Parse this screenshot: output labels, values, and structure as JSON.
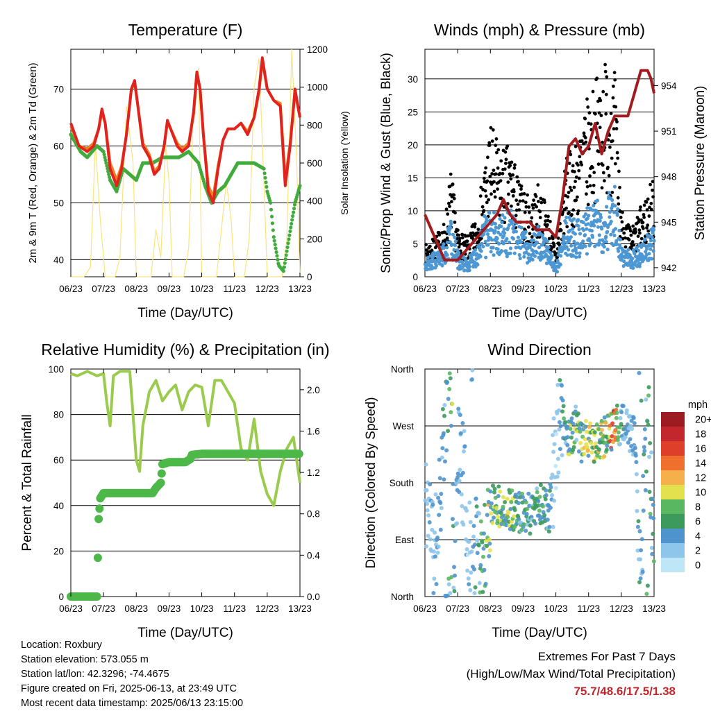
{
  "x_ticks": [
    "06/23",
    "07/23",
    "08/23",
    "09/23",
    "10/23",
    "11/23",
    "12/23",
    "13/23"
  ],
  "x_label": "Time (Day/UTC)",
  "colors": {
    "temp2m": "#e0231f",
    "temp9m": "#f08023",
    "dewpoint": "#42ab3e",
    "solar": "#fbe47a",
    "sonic": "#4d97d3",
    "gust": "#000000",
    "pressure": "#a21b1f",
    "rh": "#9bcb4d",
    "precip": "#4db849",
    "extremes": "#c0272d"
  },
  "panels": {
    "temperature": {
      "title": "Temperature (F)",
      "ylabel_left": "2m & 9m T (Red, Orange) & 2m Td (Green)",
      "ylabel_right": "Solar Insolation (Yellow)",
      "left_ticks": [
        "40",
        "50",
        "60",
        "70"
      ],
      "right_ticks": [
        "0",
        "200",
        "400",
        "600",
        "800",
        "1000",
        "1200"
      ]
    },
    "winds": {
      "title": "Winds (mph) & Pressure (mb)",
      "ylabel_left": "Sonic/Prop Wind & Gust (Blue, Black)",
      "ylabel_right": "Station Pressure (Maroon)",
      "left_ticks": [
        "0",
        "5",
        "10",
        "15",
        "20",
        "25",
        "30"
      ],
      "right_ticks": [
        "942",
        "945",
        "948",
        "951",
        "954"
      ]
    },
    "humidity": {
      "title": "Relative Humidity (%) & Precipitation (in)",
      "ylabel_left": "Percent & Total Rainfall",
      "left_ticks": [
        "0",
        "20",
        "40",
        "60",
        "80",
        "100"
      ],
      "right_ticks": [
        "0.0",
        "0.4",
        "0.8",
        "1.2",
        "1.6",
        "2.0"
      ]
    },
    "direction": {
      "title": "Wind Direction",
      "ylabel_left": "Direction (Colored By Speed)",
      "left_ticks": [
        "North",
        "East",
        "South",
        "West",
        "North"
      ],
      "legend_title": "mph",
      "legend_labels": [
        "0",
        "2",
        "4",
        "6",
        "8",
        "10",
        "12",
        "14",
        "16",
        "18",
        "20+"
      ],
      "legend_colors": [
        "#bfe6f7",
        "#8ec5ea",
        "#4f93cc",
        "#3b9a5c",
        "#59b761",
        "#e4e14e",
        "#f5b04b",
        "#ef6f2c",
        "#dd3f2b",
        "#c1272d",
        "#9c1c22"
      ]
    }
  },
  "chart_data": [
    {
      "type": "line",
      "title": "Temperature (F)",
      "xlabel": "Time (Day/UTC)",
      "ylabel": "2m & 9m T (Red, Orange) & 2m Td (Green)",
      "y2label": "Solar Insolation (Yellow)",
      "ylim": [
        37,
        77
      ],
      "y2lim": [
        0,
        1200
      ],
      "xlim": [
        0,
        7
      ],
      "series": [
        {
          "name": "2m T",
          "axis": "left",
          "x": [
            0,
            0.25,
            0.5,
            0.7,
            0.85,
            0.95,
            1.05,
            1.2,
            1.4,
            1.55,
            1.7,
            1.85,
            1.95,
            2.05,
            2.2,
            2.4,
            2.55,
            2.7,
            2.85,
            2.95,
            3.05,
            3.25,
            3.4,
            3.6,
            3.75,
            3.85,
            3.95,
            4.05,
            4.2,
            4.35,
            4.5,
            4.65,
            4.8,
            5.0,
            5.2,
            5.4,
            5.6,
            5.75,
            5.85,
            6.0,
            6.2,
            6.4,
            6.55,
            6.7,
            6.85,
            7.0
          ],
          "y": [
            64,
            60,
            59,
            60,
            63,
            66.5,
            64,
            56,
            53,
            56,
            62,
            70,
            71.5,
            67,
            60,
            58,
            55,
            56,
            60,
            64.5,
            63,
            60,
            59,
            60,
            66,
            73,
            70,
            62,
            52,
            50,
            56,
            61,
            63,
            63,
            64,
            62,
            65,
            70,
            75.5,
            70,
            68,
            67,
            53,
            60,
            70,
            65
          ]
        },
        {
          "name": "9m T",
          "axis": "left",
          "x": [
            0,
            0.25,
            0.5,
            0.7,
            0.85,
            0.95,
            1.05,
            1.2,
            1.4,
            1.55,
            1.7,
            1.85,
            1.95,
            2.05,
            2.2,
            2.4,
            2.55,
            2.7,
            2.85,
            2.95,
            3.05,
            3.25,
            3.4,
            3.6,
            3.75,
            3.85,
            3.95,
            4.05,
            4.2,
            4.35,
            4.5,
            4.65,
            4.8,
            5.0,
            5.2,
            5.4,
            5.6,
            5.75,
            5.85,
            6.0,
            6.2,
            6.4,
            6.55,
            6.7,
            6.85,
            7.0
          ],
          "y": [
            63.5,
            60,
            59.5,
            60.5,
            63,
            66,
            64,
            57,
            54,
            56.5,
            62,
            70,
            71,
            67,
            60.5,
            58.5,
            55.5,
            56.5,
            60,
            64,
            63,
            60.5,
            59.5,
            60.5,
            65.5,
            72.5,
            70,
            62,
            53,
            51,
            56.5,
            61,
            63,
            63,
            64,
            62.5,
            65,
            69.5,
            75,
            70,
            68,
            67.5,
            54,
            60.5,
            69.5,
            65
          ]
        },
        {
          "name": "2m Td",
          "axis": "left",
          "x": [
            0,
            0.3,
            0.5,
            0.8,
            1.0,
            1.2,
            1.4,
            1.6,
            1.8,
            2.0,
            2.2,
            2.5,
            2.8,
            3.0,
            3.3,
            3.6,
            3.9,
            4.1,
            4.3,
            4.5,
            4.7,
            4.9,
            5.1,
            5.3,
            5.6,
            5.9,
            6.0,
            6.1,
            6.2,
            6.35,
            6.5,
            6.7,
            6.85,
            7.0
          ],
          "y": [
            62,
            59,
            58,
            60,
            59,
            54,
            52,
            56,
            55,
            54,
            57,
            57,
            58,
            58,
            58,
            59,
            57,
            53,
            50,
            52,
            53,
            55,
            57,
            57,
            57,
            56,
            52,
            50,
            44,
            39,
            38,
            45,
            50,
            53
          ]
        },
        {
          "name": "Solar Insolation",
          "axis": "right",
          "x": [
            0,
            0.2,
            0.4,
            0.6,
            0.75,
            0.9,
            1.05,
            1.2,
            1.35,
            1.5,
            1.7,
            1.9,
            2.0,
            2.1,
            2.3,
            2.45,
            2.6,
            2.75,
            2.9,
            3.0,
            3.1,
            3.3,
            3.45,
            3.6,
            3.75,
            3.9,
            4.0,
            4.1,
            4.3,
            4.45,
            4.6,
            4.75,
            4.9,
            5.0,
            5.1,
            5.3,
            5.45,
            5.6,
            5.75,
            5.9,
            6.0,
            6.1,
            6.3,
            6.45,
            6.6,
            6.75,
            6.9,
            7.0
          ],
          "y": [
            0,
            0,
            0,
            50,
            700,
            300,
            0,
            0,
            0,
            100,
            900,
            600,
            0,
            0,
            0,
            0,
            250,
            100,
            700,
            500,
            0,
            0,
            0,
            150,
            900,
            1100,
            0,
            0,
            0,
            0,
            250,
            500,
            300,
            0,
            0,
            0,
            200,
            1000,
            1150,
            500,
            0,
            0,
            0,
            0,
            200,
            1200,
            600,
            0
          ]
        }
      ]
    },
    {
      "type": "line",
      "title": "Winds (mph) & Pressure (mb)",
      "xlabel": "Time (Day/UTC)",
      "ylabel": "Sonic/Prop Wind & Gust (Blue, Black)",
      "y2label": "Station Pressure (Maroon)",
      "ylim": [
        0,
        34.5
      ],
      "y2lim": [
        941.4,
        956.4
      ],
      "xlim": [
        0,
        7
      ],
      "series": [
        {
          "name": "Sonic/Prop Wind",
          "axis": "left",
          "x": [
            0,
            0.3,
            0.6,
            0.8,
            1.0,
            1.3,
            1.6,
            1.8,
            2.0,
            2.3,
            2.6,
            2.9,
            3.2,
            3.5,
            3.8,
            4.0,
            4.3,
            4.6,
            4.9,
            5.2,
            5.5,
            5.8,
            6.0,
            6.3,
            6.6,
            7.0
          ],
          "y": [
            2,
            3,
            4,
            7,
            3,
            2,
            4,
            7,
            8,
            7,
            8,
            6,
            5,
            6,
            4,
            1,
            7,
            7,
            8,
            9,
            9,
            12,
            4,
            3,
            4,
            6
          ]
        },
        {
          "name": "Gust",
          "axis": "left",
          "x": [
            0,
            0.3,
            0.6,
            0.8,
            1.0,
            1.3,
            1.6,
            1.8,
            2.0,
            2.3,
            2.6,
            2.9,
            3.2,
            3.5,
            3.8,
            4.0,
            4.3,
            4.6,
            4.9,
            5.2,
            5.5,
            5.8,
            6.0,
            6.3,
            6.6,
            7.0
          ],
          "y": [
            4,
            5,
            7,
            14,
            6,
            5,
            8,
            14,
            20,
            16,
            17,
            12,
            10,
            12,
            8,
            3,
            15,
            17,
            22,
            25,
            28,
            26,
            9,
            6,
            9,
            13
          ]
        },
        {
          "name": "Station Pressure",
          "axis": "right",
          "x": [
            0,
            0.2,
            0.4,
            0.6,
            0.8,
            1.0,
            1.2,
            1.4,
            1.6,
            1.8,
            2.0,
            2.2,
            2.4,
            2.6,
            2.8,
            3.0,
            3.2,
            3.4,
            3.6,
            3.8,
            4.0,
            4.2,
            4.4,
            4.6,
            4.8,
            5.0,
            5.2,
            5.4,
            5.6,
            5.8,
            6.0,
            6.2,
            6.4,
            6.6,
            6.8,
            6.9,
            7.0
          ],
          "y": [
            945.5,
            944.5,
            943.5,
            942.5,
            942.5,
            942.5,
            943,
            943.5,
            944,
            944.5,
            945,
            945.5,
            946.5,
            945.5,
            945,
            945,
            945,
            944.5,
            944.5,
            944.5,
            944,
            946.5,
            950,
            950.5,
            949.5,
            950,
            951.5,
            949.5,
            951,
            952,
            952,
            952,
            953.5,
            955,
            955,
            954.5,
            953.5
          ]
        }
      ]
    },
    {
      "type": "line",
      "title": "Relative Humidity (%) & Precipitation (in)",
      "xlabel": "Time (Day/UTC)",
      "ylabel": "Percent & Total Rainfall",
      "ylim": [
        0,
        100
      ],
      "y2lim": [
        0,
        2.2
      ],
      "xlim": [
        0,
        7
      ],
      "series": [
        {
          "name": "Relative Humidity",
          "axis": "left",
          "x": [
            0,
            0.2,
            0.5,
            0.8,
            1.0,
            1.1,
            1.2,
            1.3,
            1.5,
            1.8,
            1.9,
            2.0,
            2.1,
            2.2,
            2.4,
            2.6,
            2.8,
            3.0,
            3.2,
            3.4,
            3.6,
            3.8,
            4.0,
            4.2,
            4.4,
            4.6,
            4.8,
            5.0,
            5.2,
            5.4,
            5.6,
            5.8,
            6.0,
            6.2,
            6.4,
            6.6,
            6.8,
            7.0
          ],
          "y": [
            98,
            97,
            99,
            97,
            98,
            85,
            75,
            97,
            99,
            99,
            80,
            60,
            55,
            75,
            90,
            95,
            86,
            90,
            93,
            82,
            90,
            93,
            92,
            75,
            95,
            95,
            90,
            85,
            65,
            60,
            78,
            55,
            45,
            40,
            55,
            65,
            70,
            50
          ]
        },
        {
          "name": "Total Precipitation",
          "axis": "right",
          "x": [
            0,
            0.8,
            0.82,
            0.85,
            0.9,
            1.0,
            1.5,
            2.5,
            2.6,
            2.75,
            2.8,
            3.0,
            3.5,
            3.65,
            3.7,
            4.0,
            5.0,
            6.0,
            7.0
          ],
          "y": [
            0,
            0,
            0.3,
            0.75,
            0.95,
            1.0,
            1.0,
            1.0,
            1.05,
            1.1,
            1.28,
            1.3,
            1.3,
            1.33,
            1.37,
            1.38,
            1.38,
            1.38,
            1.38
          ]
        }
      ]
    },
    {
      "type": "scatter",
      "title": "Wind Direction",
      "xlabel": "Time (Day/UTC)",
      "ylabel": "Direction (Colored By Speed)",
      "yticks": [
        "North",
        "East",
        "South",
        "West",
        "North"
      ],
      "ylim": [
        0,
        360
      ],
      "xlim": [
        0,
        7
      ],
      "legend_title": "mph",
      "series": [
        {
          "name": "Wind direction",
          "x": [
            0.1,
            0.3,
            0.5,
            0.7,
            0.8,
            0.9,
            1.0,
            1.2,
            1.4,
            1.6,
            1.8,
            2.0,
            2.2,
            2.4,
            2.6,
            2.8,
            3.0,
            3.2,
            3.4,
            3.6,
            3.8,
            4.0,
            4.2,
            4.4,
            4.6,
            4.8,
            5.0,
            5.2,
            5.4,
            5.6,
            5.8,
            6.0,
            6.2,
            6.4,
            6.6,
            6.8,
            7.0
          ],
          "y": [
            150,
            60,
            200,
            330,
            350,
            20,
            250,
            180,
            40,
            100,
            70,
            150,
            145,
            140,
            140,
            130,
            140,
            130,
            150,
            145,
            130,
            240,
            280,
            250,
            270,
            240,
            250,
            235,
            250,
            260,
            270,
            275,
            260,
            250,
            10,
            330,
            40
          ]
        }
      ]
    }
  ],
  "info": {
    "location": "Location: Roxbury",
    "elevation": "Station elevation: 573.055 m",
    "latlon": "Station lat/lon: 42.3296; -74.4675",
    "created": "Figure created on Fri, 2025-06-13, at 23:49 UTC",
    "timestamp": "Most recent data timestamp: 2025/06/13 23:15:00"
  },
  "extremes": {
    "heading": "Extremes For Past 7 Days",
    "subheading": "(High/Low/Max Wind/Total Precipitation)",
    "values": "75.7/48.6/17.5/1.38"
  }
}
